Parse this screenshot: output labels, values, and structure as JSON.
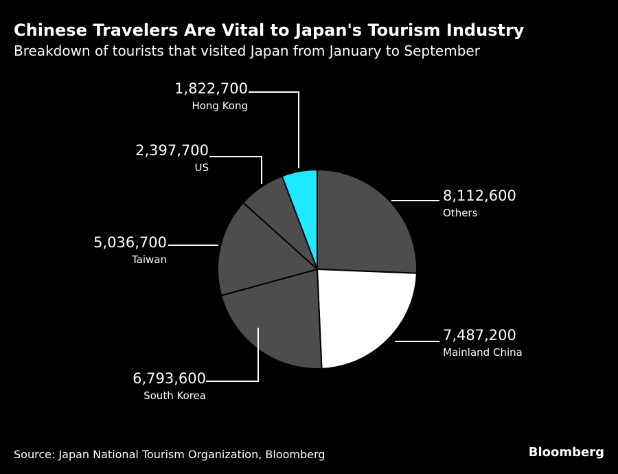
{
  "header": {
    "title": "Chinese Travelers Are Vital to Japan's Tourism Industry",
    "subtitle": "Breakdown of tourists that visited Japan from January to September"
  },
  "footer": {
    "source": "Source: Japan National Tourism Organization, Bloomberg",
    "brand": "Bloomberg"
  },
  "chart_data": {
    "type": "pie",
    "title": "Chinese Travelers Are Vital to Japan's Tourism Industry",
    "subtitle": "Breakdown of tourists that visited Japan from January to September",
    "slices": [
      {
        "label": "Others",
        "value": 8112600,
        "display": "8,112,600",
        "color": "#4d4d4d"
      },
      {
        "label": "Mainland China",
        "value": 7487200,
        "display": "7,487,200",
        "color": "#ffffff"
      },
      {
        "label": "South Korea",
        "value": 6793600,
        "display": "6,793,600",
        "color": "#4d4d4d"
      },
      {
        "label": "Taiwan",
        "value": 5036700,
        "display": "5,036,700",
        "color": "#4d4d4d"
      },
      {
        "label": "US",
        "value": 2397700,
        "display": "2,397,700",
        "color": "#4d4d4d"
      },
      {
        "label": "Hong Kong",
        "value": 1822700,
        "display": "1,822,700",
        "color": "#1ee9ff"
      }
    ],
    "slice_border_color": "#000000"
  }
}
